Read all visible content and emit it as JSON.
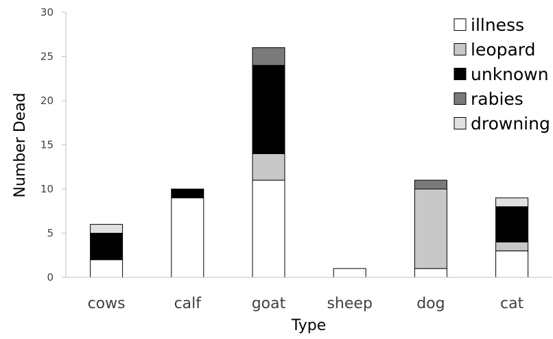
{
  "chart_data": {
    "type": "bar",
    "stacked": true,
    "title": "",
    "xlabel": "Type",
    "ylabel": "Number Dead",
    "ylim": [
      0,
      30
    ],
    "yticks": [
      0,
      5,
      10,
      15,
      20,
      25,
      30
    ],
    "grid": false,
    "legend_position": "top-right",
    "categories": [
      "cows",
      "calf",
      "goat",
      "sheep",
      "dog",
      "cat"
    ],
    "series": [
      {
        "name": "illness",
        "color": "#ffffff",
        "values": [
          2,
          9,
          11,
          1,
          1,
          3
        ]
      },
      {
        "name": "leopard",
        "color": "#c8c8c8",
        "values": [
          0,
          0,
          3,
          0,
          9,
          1
        ]
      },
      {
        "name": "unknown",
        "color": "#000000",
        "values": [
          3,
          1,
          10,
          0,
          0,
          4
        ]
      },
      {
        "name": "rabies",
        "color": "#7a7a7a",
        "values": [
          0,
          0,
          2,
          0,
          1,
          0
        ]
      },
      {
        "name": "drowning",
        "color": "#e0e0e0",
        "values": [
          1,
          0,
          0,
          0,
          0,
          1
        ]
      }
    ]
  }
}
